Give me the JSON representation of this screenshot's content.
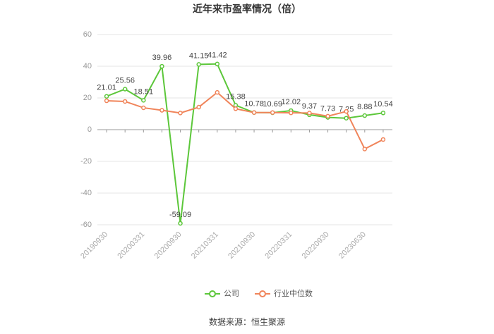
{
  "chart_data": {
    "type": "line",
    "title": "近年来市盈率情况（倍）",
    "categories": [
      "20190930",
      null,
      "20200331",
      null,
      "20200930",
      null,
      "20210331",
      null,
      "20210930",
      null,
      "20220331",
      null,
      "20220930",
      null,
      "20230630",
      null
    ],
    "series": [
      {
        "name": "公司",
        "color": "#5cc73a",
        "values": [
          21.01,
          25.56,
          18.51,
          39.96,
          -59.09,
          41.15,
          41.42,
          15.38,
          10.78,
          10.69,
          12.02,
          9.37,
          7.73,
          7.25,
          8.88,
          10.54
        ]
      },
      {
        "name": "行业中位数",
        "color": "#f0845a",
        "values": [
          18.2,
          17.8,
          13.8,
          12.2,
          10.5,
          14.2,
          23.5,
          13.2,
          10.8,
          10.8,
          10.6,
          10.5,
          8.5,
          11.5,
          -12.2,
          -6.2
        ]
      }
    ],
    "ylim": [
      -60,
      60
    ],
    "yticks": [
      -60,
      -40,
      -20,
      0,
      20,
      40,
      60
    ],
    "grid": true,
    "legend": "bottom",
    "source": "数据来源：恒生聚源"
  }
}
